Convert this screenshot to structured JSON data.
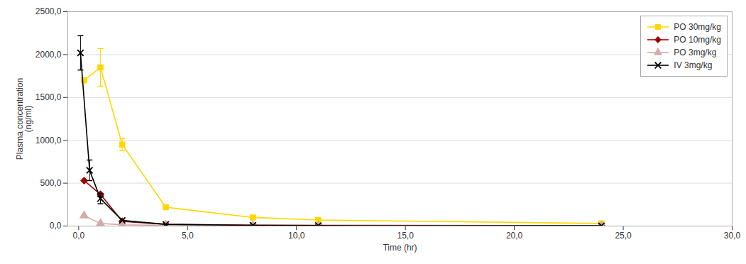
{
  "chart_data": {
    "type": "line",
    "xlabel": "Time (hr)",
    "ylabel": "Plasma concentration\n(ng/ml)",
    "xlim": [
      -0.5,
      30.0
    ],
    "ylim": [
      0,
      2500
    ],
    "xticks": [
      {
        "value": 0.0,
        "label": "0,0"
      },
      {
        "value": 5.0,
        "label": "5,0"
      },
      {
        "value": 10.0,
        "label": "10,0"
      },
      {
        "value": 15.0,
        "label": "15,0"
      },
      {
        "value": 20.0,
        "label": "20,0"
      },
      {
        "value": 25.0,
        "label": "25,0"
      },
      {
        "value": 30.0,
        "label": "30,0"
      }
    ],
    "yticks": [
      {
        "value": 0.0,
        "label": "0,0"
      },
      {
        "value": 500.0,
        "label": "500,0"
      },
      {
        "value": 1000.0,
        "label": "1000,0"
      },
      {
        "value": 1500.0,
        "label": "1500,0"
      },
      {
        "value": 2000.0,
        "label": "2000,0"
      },
      {
        "value": 2500.0,
        "label": "2500,0"
      }
    ],
    "grid": "y",
    "legend": "upper right",
    "series": [
      {
        "name": "PO 30mg/kg",
        "color": "#FFD700",
        "marker": "square",
        "x": [
          0.25,
          1.0,
          2.0,
          4.0,
          8.0,
          11.0,
          24.0
        ],
        "values": [
          1700,
          1850,
          950,
          220,
          100,
          70,
          30
        ],
        "yerr": [
          null,
          220,
          70,
          null,
          null,
          null,
          null
        ]
      },
      {
        "name": "PO 10mg/kg",
        "color": "#A00000",
        "marker": "diamond",
        "x": [
          0.25,
          1.0,
          2.0,
          4.0,
          8.0,
          11.0,
          24.0
        ],
        "values": [
          530,
          370,
          55,
          20,
          10,
          8,
          5
        ],
        "yerr": [
          null,
          null,
          null,
          null,
          null,
          null,
          null
        ]
      },
      {
        "name": "PO 3mg/kg",
        "color": "#D4AAAA",
        "marker": "triangle",
        "x": [
          0.25,
          1.0,
          2.0,
          4.0,
          8.0,
          11.0,
          24.0
        ],
        "values": [
          120,
          30,
          15,
          8,
          5,
          4,
          3
        ],
        "yerr": [
          null,
          null,
          null,
          null,
          null,
          null,
          null
        ]
      },
      {
        "name": "IV 3mg/kg",
        "color": "#000000",
        "marker": "x",
        "x": [
          0.083,
          0.5,
          1.0,
          2.0,
          4.0,
          8.0,
          11.0,
          24.0
        ],
        "values": [
          2020,
          650,
          320,
          65,
          20,
          8,
          5,
          3
        ],
        "yerr": [
          200,
          120,
          60,
          null,
          null,
          null,
          null,
          null
        ]
      }
    ]
  }
}
